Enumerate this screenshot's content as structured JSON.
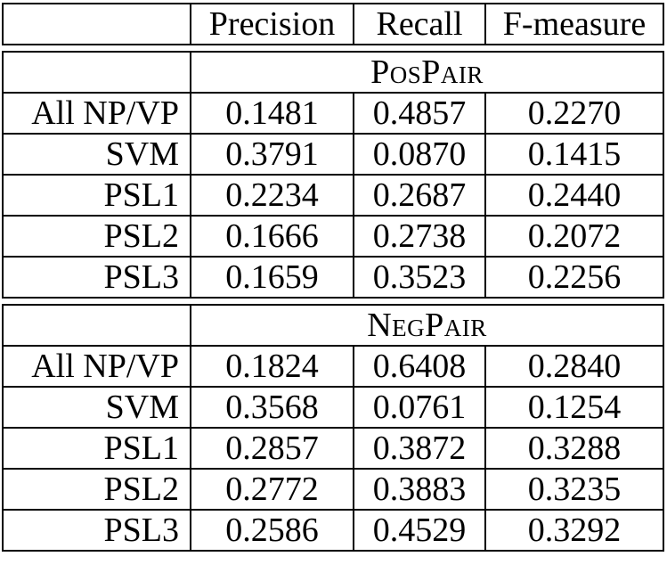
{
  "colors": {
    "border": "#000000",
    "text": "#000000",
    "background": "#ffffff"
  },
  "table": {
    "corner_label": "",
    "columns": {
      "precision": "Precision",
      "recall": "Recall",
      "fmeasure": "F-measure"
    },
    "sections": [
      {
        "title": "PosPair",
        "corner_label": "",
        "rows": [
          {
            "label": "All NP/VP",
            "values": [
              "0.1481",
              "0.4857",
              "0.2270"
            ]
          },
          {
            "label": "SVM",
            "values": [
              "0.3791",
              "0.0870",
              "0.1415"
            ]
          },
          {
            "label": "PSL1",
            "values": [
              "0.2234",
              "0.2687",
              "0.2440"
            ]
          },
          {
            "label": "PSL2",
            "values": [
              "0.1666",
              "0.2738",
              "0.2072"
            ]
          },
          {
            "label": "PSL3",
            "values": [
              "0.1659",
              "0.3523",
              "0.2256"
            ]
          }
        ]
      },
      {
        "title": "NegPair",
        "corner_label": "",
        "rows": [
          {
            "label": "All NP/VP",
            "values": [
              "0.1824",
              "0.6408",
              "0.2840"
            ]
          },
          {
            "label": "SVM",
            "values": [
              "0.3568",
              "0.0761",
              "0.1254"
            ]
          },
          {
            "label": "PSL1",
            "values": [
              "0.2857",
              "0.3872",
              "0.3288"
            ]
          },
          {
            "label": "PSL2",
            "values": [
              "0.2772",
              "0.3883",
              "0.3235"
            ]
          },
          {
            "label": "PSL3",
            "values": [
              "0.2586",
              "0.4529",
              "0.3292"
            ]
          }
        ]
      }
    ]
  }
}
